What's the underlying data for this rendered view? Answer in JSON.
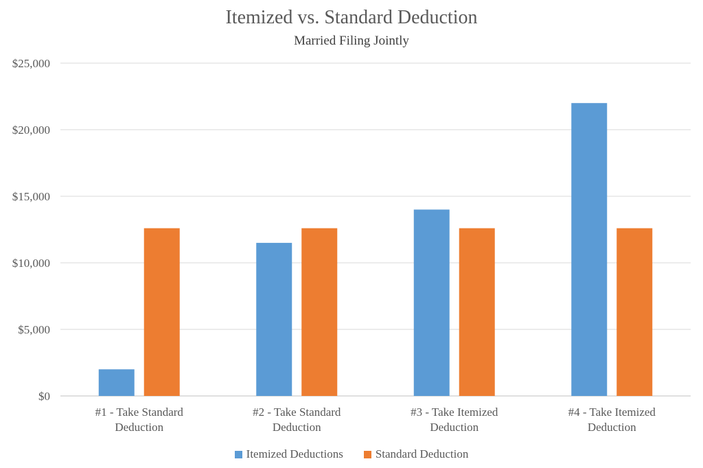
{
  "chart_data": {
    "type": "bar",
    "title": "Itemized vs. Standard Deduction",
    "subtitle": "Married Filing Jointly",
    "categories": [
      "#1 - Take Standard Deduction",
      "#2 - Take Standard Deduction",
      "#3 - Take Itemized Deduction",
      "#4 - Take Itemized Deduction"
    ],
    "category_lines": [
      [
        "#1 - Take Standard",
        "Deduction"
      ],
      [
        "#2 - Take Standard",
        "Deduction"
      ],
      [
        "#3 - Take Itemized",
        "Deduction"
      ],
      [
        "#4 - Take Itemized",
        "Deduction"
      ]
    ],
    "series": [
      {
        "name": "Itemized Deductions",
        "color": "#5B9BD5",
        "values": [
          2000,
          11500,
          14000,
          22000
        ]
      },
      {
        "name": "Standard Deduction",
        "color": "#ED7D31",
        "values": [
          12600,
          12600,
          12600,
          12600
        ]
      }
    ],
    "ylim": [
      0,
      25000
    ],
    "yticks": [
      0,
      5000,
      10000,
      15000,
      20000,
      25000
    ],
    "ytick_labels": [
      "$0",
      "$5,000",
      "$10,000",
      "$15,000",
      "$20,000",
      "$25,000"
    ],
    "grid": true,
    "legend_position": "bottom"
  }
}
